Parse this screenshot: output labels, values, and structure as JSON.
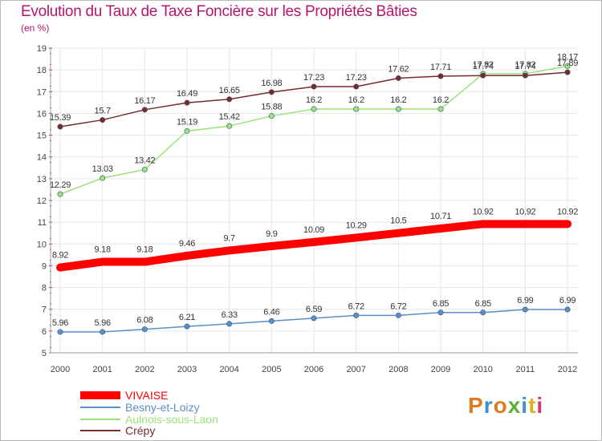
{
  "title": "Evolution du Taux de Taxe Foncière sur les Propriétés Bâties",
  "unit_label": "(en %)",
  "logo": {
    "text": "Proxiti",
    "letters": [
      {
        "ch": "P",
        "color": "#e07b20"
      },
      {
        "ch": "r",
        "color": "#3f8fd0"
      },
      {
        "ch": "o",
        "color": "#e07b20"
      },
      {
        "ch": "x",
        "color": "#5fae3a"
      },
      {
        "ch": "i",
        "color": "#3f8fd0"
      },
      {
        "ch": "t",
        "color": "#e0b020"
      },
      {
        "ch": "i",
        "color": "#d23a6a"
      }
    ]
  },
  "chart_data": {
    "type": "line",
    "title": "Evolution du Taux de Taxe Foncière sur les Propriétés Bâties",
    "ylabel": "(en %)",
    "xlabel": "",
    "ylim": [
      5,
      19
    ],
    "yticks": [
      5,
      6,
      7,
      8,
      9,
      10,
      11,
      12,
      13,
      14,
      15,
      16,
      17,
      18,
      19
    ],
    "categories": [
      "2000",
      "2001",
      "2002",
      "2003",
      "2004",
      "2005",
      "2006",
      "2007",
      "2008",
      "2009",
      "2010",
      "2011",
      "2012"
    ],
    "grid": true,
    "legend_position": "bottom-left",
    "series": [
      {
        "name": "VIVAISE",
        "color": "#ff0000",
        "values": [
          8.92,
          9.18,
          9.18,
          9.46,
          9.7,
          9.9,
          10.09,
          10.29,
          10.5,
          10.71,
          10.92,
          10.92,
          10.92
        ],
        "labels": [
          "8.92",
          "9.18",
          "9.18",
          "9.46",
          "9.7",
          "9.9",
          "10.09",
          "10.29",
          "10.5",
          "10.71",
          "10.92",
          "10.92",
          "10.92"
        ]
      },
      {
        "name": "Besny-et-Loizy",
        "color": "#5b8fc7",
        "values": [
          5.96,
          5.96,
          6.08,
          6.21,
          6.33,
          6.46,
          6.59,
          6.72,
          6.72,
          6.85,
          6.85,
          6.99,
          6.99
        ],
        "labels": [
          "5.96",
          "5.96",
          "6.08",
          "6.21",
          "6.33",
          "6.46",
          "6.59",
          "6.72",
          "6.72",
          "6.85",
          "6.85",
          "6.99",
          "6.99"
        ]
      },
      {
        "name": "Aulnois-sous-Laon",
        "color": "#9be37a",
        "values": [
          12.29,
          13.03,
          13.42,
          15.19,
          15.42,
          15.88,
          16.2,
          16.2,
          16.2,
          16.2,
          17.82,
          17.82,
          18.17
        ],
        "labels": [
          "12.29",
          "13.03",
          "13.42",
          "15.19",
          "15.42",
          "15.88",
          "16.2",
          "16.2",
          "16.2",
          "16.2",
          "17.82",
          "17.82",
          "18.17"
        ]
      },
      {
        "name": "Crépy",
        "color": "#7a2a2a",
        "values": [
          15.39,
          15.7,
          16.17,
          16.49,
          16.65,
          16.98,
          17.23,
          17.23,
          17.62,
          17.71,
          17.74,
          17.74,
          17.89
        ],
        "labels": [
          "15.39",
          "15.7",
          "16.17",
          "16.49",
          "16.65",
          "16.98",
          "17.23",
          "17.23",
          "17.62",
          "17.71",
          "17.74",
          "17.74",
          "17.89"
        ]
      }
    ]
  }
}
